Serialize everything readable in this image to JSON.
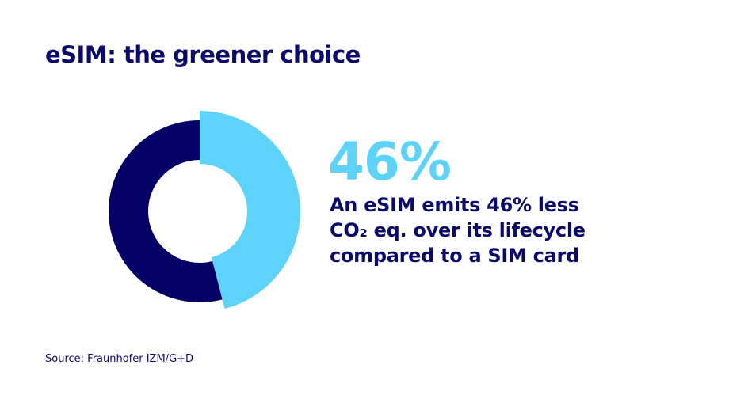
{
  "title": "eSIM: the greener choice",
  "highlight": "46%",
  "description_lines": [
    "An eSIM emits 46% less",
    "CO₂ eq. over its lifecycle",
    "compared to a SIM card"
  ],
  "source": "Source: Fraunhofer IZM/G+D",
  "chart_data": {
    "type": "pie",
    "style": "donut",
    "slices": [
      {
        "value": 46,
        "color": "#5ed3fa",
        "exploded": true
      },
      {
        "value": 54,
        "color": "#050066"
      }
    ]
  }
}
